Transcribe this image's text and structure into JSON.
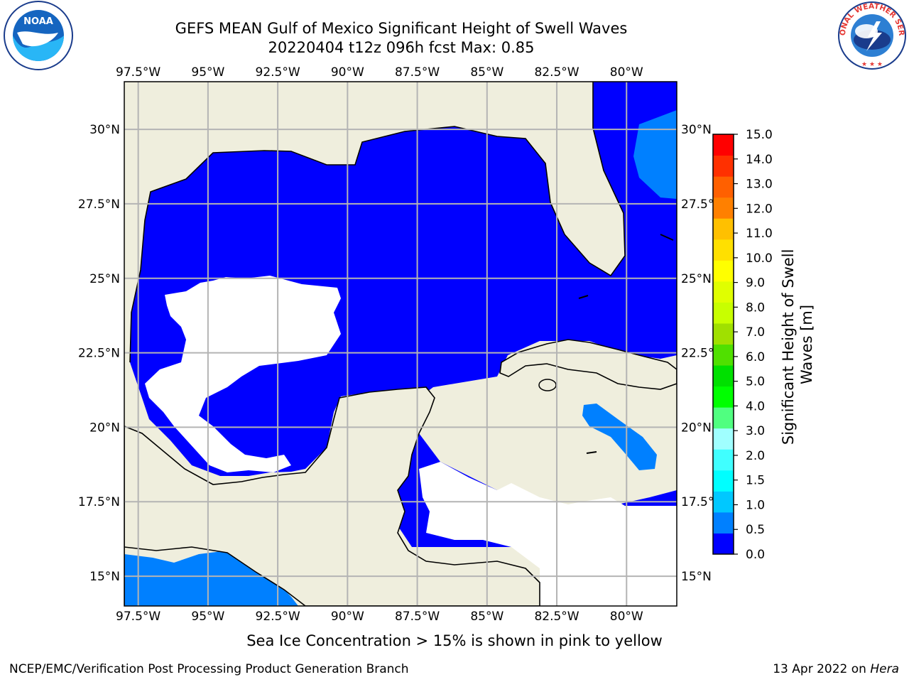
{
  "header": {
    "title_line1": "GEFS MEAN Gulf of Mexico Significant Height of Swell Waves",
    "title_line2": "20220404 t12z 096h fcst   Max: 0.85"
  },
  "logos": {
    "noaa": "noaa-logo",
    "nws_text": "NATIONAL WEATHER SERVICE"
  },
  "map": {
    "lon_labels": [
      "97.5°W",
      "95°W",
      "92.5°W",
      "90°W",
      "87.5°W",
      "85°W",
      "82.5°W",
      "80°W"
    ],
    "lat_labels": [
      "30°N",
      "27.5°N",
      "25°N",
      "22.5°N",
      "20°N",
      "17.5°N",
      "15°N"
    ],
    "lon_values": [
      -97.5,
      -95,
      -92.5,
      -90,
      -87.5,
      -85,
      -82.5,
      -80
    ],
    "lat_values": [
      30,
      27.5,
      25,
      22.5,
      20,
      17.5,
      15
    ],
    "lon_range": [
      -98,
      -78.2
    ],
    "lat_range": [
      14,
      31.6
    ],
    "colors": {
      "land": "#efeedd",
      "ocean_low": "#0000ff",
      "ocean_mid": "#0080ff",
      "no_data": "#ffffff",
      "grid": "#b4b4b4"
    }
  },
  "colorbar": {
    "label_line1": "Significant Height of Swell",
    "label_line2": "Waves [m]",
    "ticks": [
      "0.0",
      "0.5",
      "1.0",
      "1.5",
      "2.0",
      "3.0",
      "4.0",
      "5.0",
      "6.0",
      "7.0",
      "8.0",
      "9.0",
      "10.0",
      "11.0",
      "12.0",
      "13.0",
      "14.0",
      "15.0"
    ],
    "colors": [
      "#0000ff",
      "#0080ff",
      "#00c8ff",
      "#00ffff",
      "#40ffff",
      "#a0ffff",
      "#50ff80",
      "#00ff00",
      "#00e000",
      "#50e000",
      "#a0e000",
      "#c8ff00",
      "#e0ff00",
      "#ffff00",
      "#ffe000",
      "#ffc000",
      "#ff8000",
      "#ff6000",
      "#ff3000",
      "#ff0000"
    ]
  },
  "footer": {
    "note": "Sea Ice Concentration > 15% is shown in pink to yellow",
    "credit": "NCEP/EMC/Verification Post Processing Product Generation Branch",
    "date_prefix": "13 Apr 2022 on ",
    "host": "Hera"
  }
}
